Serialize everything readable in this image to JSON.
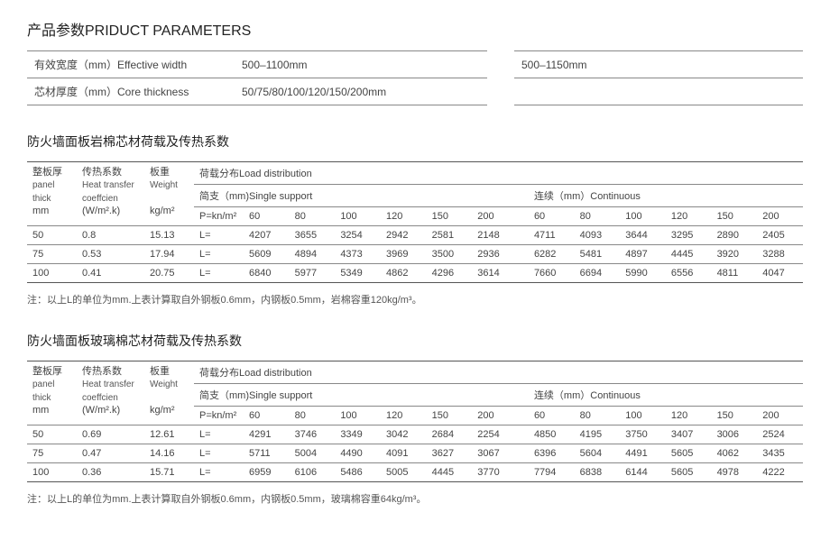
{
  "title": "产品参数PRIDUCT PARAMETERS",
  "params": {
    "rows": [
      {
        "label": "有效宽度（mm）Effective width",
        "v1": "500–1100mm",
        "v2": "500–1150mm"
      },
      {
        "label": "芯材厚度（mm）Core thickness",
        "v1": "50/75/80/100/120/150/200mm",
        "v2": ""
      }
    ]
  },
  "common_headers": {
    "panel": {
      "l1": "整板厚",
      "l2": "panel",
      "l3": "thick",
      "unit": "mm"
    },
    "coeff": {
      "l1": "传热系数",
      "l2": "Heat transfer",
      "l3": "coeffcien",
      "unit": "(W/m².k)"
    },
    "weight": {
      "l1": "板重",
      "l2": "Weight",
      "unit": "kg/m²"
    },
    "load_title": "荷载分布Load distribution",
    "single": "简支（mm)Single support",
    "continuous": "连续（mm）Continuous",
    "p_label": "P=kn/m²",
    "l_label": "L=",
    "cols": [
      "60",
      "80",
      "100",
      "120",
      "150",
      "200"
    ]
  },
  "section1": {
    "title": "防火墙面板岩棉芯材荷载及传热系数",
    "rows": [
      {
        "t": "50",
        "c": "0.8",
        "w": "15.13",
        "s": [
          "4207",
          "3655",
          "3254",
          "2942",
          "2581",
          "2148"
        ],
        "k": [
          "4711",
          "4093",
          "3644",
          "3295",
          "2890",
          "2405"
        ]
      },
      {
        "t": "75",
        "c": "0.53",
        "w": "17.94",
        "s": [
          "5609",
          "4894",
          "4373",
          "3969",
          "3500",
          "2936"
        ],
        "k": [
          "6282",
          "5481",
          "4897",
          "4445",
          "3920",
          "3288"
        ]
      },
      {
        "t": "100",
        "c": "0.41",
        "w": "20.75",
        "s": [
          "6840",
          "5977",
          "5349",
          "4862",
          "4296",
          "3614"
        ],
        "k": [
          "7660",
          "6694",
          "5990",
          "6556",
          "4811",
          "4047"
        ]
      }
    ],
    "note": "注：以上L的单位为mm.上表计算取自外钢板0.6mm，内钢板0.5mm，岩棉容重120kg/m³。"
  },
  "section2": {
    "title": "防火墙面板玻璃棉芯材荷载及传热系数",
    "rows": [
      {
        "t": "50",
        "c": "0.69",
        "w": "12.61",
        "s": [
          "4291",
          "3746",
          "3349",
          "3042",
          "2684",
          "2254"
        ],
        "k": [
          "4850",
          "4195",
          "3750",
          "3407",
          "3006",
          "2524"
        ]
      },
      {
        "t": "75",
        "c": "0.47",
        "w": "14.16",
        "s": [
          "5711",
          "5004",
          "4490",
          "4091",
          "3627",
          "3067"
        ],
        "k": [
          "6396",
          "5604",
          "4491",
          "5605",
          "4062",
          "3435"
        ]
      },
      {
        "t": "100",
        "c": "0.36",
        "w": "15.71",
        "s": [
          "6959",
          "6106",
          "5486",
          "5005",
          "4445",
          "3770"
        ],
        "k": [
          "7794",
          "6838",
          "6144",
          "5605",
          "4978",
          "4222"
        ]
      }
    ],
    "note": "注：以上L的单位为mm.上表计算取自外钢板0.6mm，内钢板0.5mm，玻璃棉容重64kg/m³。"
  }
}
